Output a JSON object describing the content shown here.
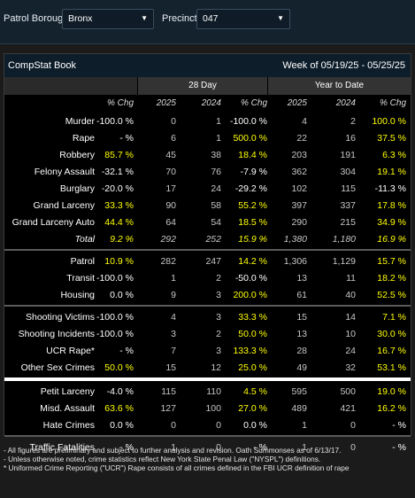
{
  "filters": {
    "borough_label": "Patrol Borough:",
    "borough_value": "Bronx",
    "precinct_label": "Precinct:",
    "precinct_value": "047"
  },
  "panel": {
    "title": "CompStat Book",
    "week": "Week of 05/19/25 - 05/25/25"
  },
  "groups": {
    "period_28": "28 Day",
    "ytd": "Year to Date"
  },
  "columns": [
    "% Chg",
    "2025",
    "2024",
    "% Chg",
    "2025",
    "2024",
    "% Chg"
  ],
  "sections": [
    [
      {
        "label": "Murder",
        "v": [
          "-100.0 %",
          "0",
          "1",
          "-100.0 %",
          "4",
          "2",
          "100.0 %"
        ],
        "y": [
          false,
          false,
          false,
          false,
          false,
          false,
          true
        ]
      },
      {
        "label": "Rape",
        "v": [
          "- %",
          "6",
          "1",
          "500.0 %",
          "22",
          "16",
          "37.5 %"
        ],
        "y": [
          false,
          false,
          false,
          true,
          false,
          false,
          true
        ]
      },
      {
        "label": "Robbery",
        "v": [
          "85.7 %",
          "45",
          "38",
          "18.4 %",
          "203",
          "191",
          "6.3 %"
        ],
        "y": [
          true,
          false,
          false,
          true,
          false,
          false,
          true
        ]
      },
      {
        "label": "Felony Assault",
        "v": [
          "-32.1 %",
          "70",
          "76",
          "-7.9 %",
          "362",
          "304",
          "19.1 %"
        ],
        "y": [
          false,
          false,
          false,
          false,
          false,
          false,
          true
        ]
      },
      {
        "label": "Burglary",
        "v": [
          "-20.0 %",
          "17",
          "24",
          "-29.2 %",
          "102",
          "115",
          "-11.3 %"
        ],
        "y": [
          false,
          false,
          false,
          false,
          false,
          false,
          false
        ]
      },
      {
        "label": "Grand Larceny",
        "v": [
          "33.3 %",
          "90",
          "58",
          "55.2 %",
          "397",
          "337",
          "17.8 %"
        ],
        "y": [
          true,
          false,
          false,
          true,
          false,
          false,
          true
        ]
      },
      {
        "label": "Grand Larceny Auto",
        "v": [
          "44.4 %",
          "64",
          "54",
          "18.5 %",
          "290",
          "215",
          "34.9 %"
        ],
        "y": [
          true,
          false,
          false,
          true,
          false,
          false,
          true
        ]
      },
      {
        "label": "Total",
        "v": [
          "9.2 %",
          "292",
          "252",
          "15.9 %",
          "1,380",
          "1,180",
          "16.9 %"
        ],
        "y": [
          true,
          false,
          false,
          true,
          false,
          false,
          true
        ],
        "italic": true
      }
    ],
    [
      {
        "label": "Patrol",
        "v": [
          "10.9 %",
          "282",
          "247",
          "14.2 %",
          "1,306",
          "1,129",
          "15.7 %"
        ],
        "y": [
          true,
          false,
          false,
          true,
          false,
          false,
          true
        ]
      },
      {
        "label": "Transit",
        "v": [
          "-100.0 %",
          "1",
          "2",
          "-50.0 %",
          "13",
          "11",
          "18.2 %"
        ],
        "y": [
          false,
          false,
          false,
          false,
          false,
          false,
          true
        ]
      },
      {
        "label": "Housing",
        "v": [
          "0.0 %",
          "9",
          "3",
          "200.0 %",
          "61",
          "40",
          "52.5 %"
        ],
        "y": [
          false,
          false,
          false,
          true,
          false,
          false,
          true
        ]
      }
    ],
    [
      {
        "label": "Shooting Victims",
        "v": [
          "-100.0 %",
          "4",
          "3",
          "33.3 %",
          "15",
          "14",
          "7.1 %"
        ],
        "y": [
          false,
          false,
          false,
          true,
          false,
          false,
          true
        ]
      },
      {
        "label": "Shooting Incidents",
        "v": [
          "-100.0 %",
          "3",
          "2",
          "50.0 %",
          "13",
          "10",
          "30.0 %"
        ],
        "y": [
          false,
          false,
          false,
          true,
          false,
          false,
          true
        ]
      },
      {
        "label": "UCR Rape*",
        "v": [
          "- %",
          "7",
          "3",
          "133.3 %",
          "28",
          "24",
          "16.7 %"
        ],
        "y": [
          false,
          false,
          false,
          true,
          false,
          false,
          true
        ]
      },
      {
        "label": "Other Sex Crimes",
        "v": [
          "50.0 %",
          "15",
          "12",
          "25.0 %",
          "49",
          "32",
          "53.1 %"
        ],
        "y": [
          true,
          false,
          false,
          true,
          false,
          false,
          true
        ]
      }
    ],
    [
      {
        "label": "Petit Larceny",
        "v": [
          "-4.0 %",
          "115",
          "110",
          "4.5 %",
          "595",
          "500",
          "19.0 %"
        ],
        "y": [
          false,
          false,
          false,
          true,
          false,
          false,
          true
        ]
      },
      {
        "label": "Misd. Assault",
        "v": [
          "63.6 %",
          "127",
          "100",
          "27.0 %",
          "489",
          "421",
          "16.2 %"
        ],
        "y": [
          true,
          false,
          false,
          true,
          false,
          false,
          true
        ]
      },
      {
        "label": "Hate Crimes",
        "v": [
          "0.0 %",
          "0",
          "0",
          "0.0 %",
          "1",
          "0",
          "- %"
        ],
        "y": [
          false,
          false,
          false,
          false,
          false,
          false,
          false
        ]
      }
    ],
    [
      {
        "label": "Traffic Fatalities",
        "v": [
          "- %",
          "1",
          "0",
          "- %",
          "1",
          "0",
          "- %"
        ],
        "y": [
          false,
          false,
          false,
          false,
          false,
          false,
          false
        ]
      }
    ]
  ],
  "footnotes": [
    "- All figures are preliminary and subject to further analysis and revision. Oath Summonses as of 6/13/17.",
    "- Unless otherwise noted, crime statistics reflect New York State Penal Law (\"NYSPL\") definitions.",
    "* Uniformed Crime Reporting (\"UCR\") Rape consists of all crimes defined in the FBI UCR definition of rape"
  ]
}
